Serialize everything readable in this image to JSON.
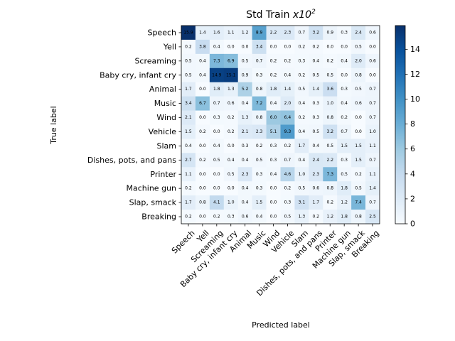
{
  "chart_data": {
    "type": "heatmap",
    "title": "Std Train",
    "title_suffix": "x10",
    "title_exponent": "2",
    "xlabel": "Predicted label",
    "ylabel": "True label",
    "colormap": "Blues",
    "colormap_low": "#f7fbff",
    "colormap_high": "#08306b",
    "vmin": 0,
    "vmax": 15.9,
    "colorbar_ticks": [
      0,
      2,
      4,
      6,
      8,
      10,
      12,
      14
    ],
    "categories": [
      "Speech",
      "Yell",
      "Screaming",
      "Baby cry, infant cry",
      "Animal",
      "Music",
      "Wind",
      "Vehicle",
      "Slam",
      "Dishes, pots, and pans",
      "Printer",
      "Machine gun",
      "Slap, smack",
      "Breaking"
    ],
    "matrix": [
      [
        15.9,
        1.4,
        1.6,
        1.1,
        1.2,
        8.9,
        2.2,
        2.3,
        0.7,
        3.2,
        0.9,
        0.3,
        2.4,
        0.6
      ],
      [
        0.2,
        3.8,
        0.4,
        0.0,
        0.0,
        3.4,
        0.0,
        0.0,
        0.2,
        0.2,
        0.0,
        0.0,
        0.5,
        0.0
      ],
      [
        0.5,
        0.4,
        7.3,
        6.9,
        0.5,
        0.7,
        0.2,
        0.2,
        0.3,
        0.4,
        0.2,
        0.4,
        2.0,
        0.6
      ],
      [
        0.5,
        0.4,
        14.9,
        15.1,
        0.9,
        0.3,
        0.2,
        0.4,
        0.2,
        0.5,
        0.5,
        0.0,
        0.8,
        0.0
      ],
      [
        1.7,
        0.0,
        1.8,
        1.3,
        5.2,
        0.8,
        1.8,
        1.4,
        0.5,
        1.4,
        3.6,
        0.3,
        0.5,
        0.7
      ],
      [
        3.4,
        6.7,
        0.7,
        0.6,
        0.4,
        7.2,
        0.4,
        2.0,
        0.4,
        0.3,
        1.0,
        0.4,
        0.6,
        0.7
      ],
      [
        2.1,
        0.0,
        0.3,
        0.2,
        1.3,
        0.8,
        6.0,
        6.4,
        0.2,
        0.3,
        0.8,
        0.2,
        0.0,
        0.7
      ],
      [
        1.5,
        0.2,
        0.0,
        0.2,
        2.1,
        2.3,
        5.1,
        9.3,
        0.4,
        0.5,
        3.2,
        0.7,
        0.0,
        1.0
      ],
      [
        0.4,
        0.0,
        0.4,
        0.0,
        0.3,
        0.2,
        0.3,
        0.2,
        1.7,
        0.4,
        0.5,
        1.5,
        1.5,
        1.1
      ],
      [
        2.7,
        0.2,
        0.5,
        0.4,
        0.4,
        0.5,
        0.3,
        0.7,
        0.4,
        2.4,
        2.2,
        0.3,
        1.5,
        0.7
      ],
      [
        1.1,
        0.0,
        0.0,
        0.5,
        2.3,
        0.3,
        0.4,
        4.6,
        1.0,
        2.3,
        7.3,
        0.5,
        0.2,
        1.1
      ],
      [
        0.2,
        0.0,
        0.0,
        0.0,
        0.4,
        0.3,
        0.0,
        0.2,
        0.5,
        0.6,
        0.8,
        1.8,
        0.5,
        1.4
      ],
      [
        1.7,
        0.8,
        4.1,
        1.0,
        0.4,
        1.5,
        0.0,
        0.3,
        3.1,
        1.7,
        0.2,
        1.2,
        7.4,
        0.7
      ],
      [
        0.2,
        0.0,
        0.2,
        0.3,
        0.6,
        0.4,
        0.0,
        0.5,
        1.3,
        0.2,
        1.2,
        1.8,
        0.8,
        2.5
      ]
    ]
  }
}
